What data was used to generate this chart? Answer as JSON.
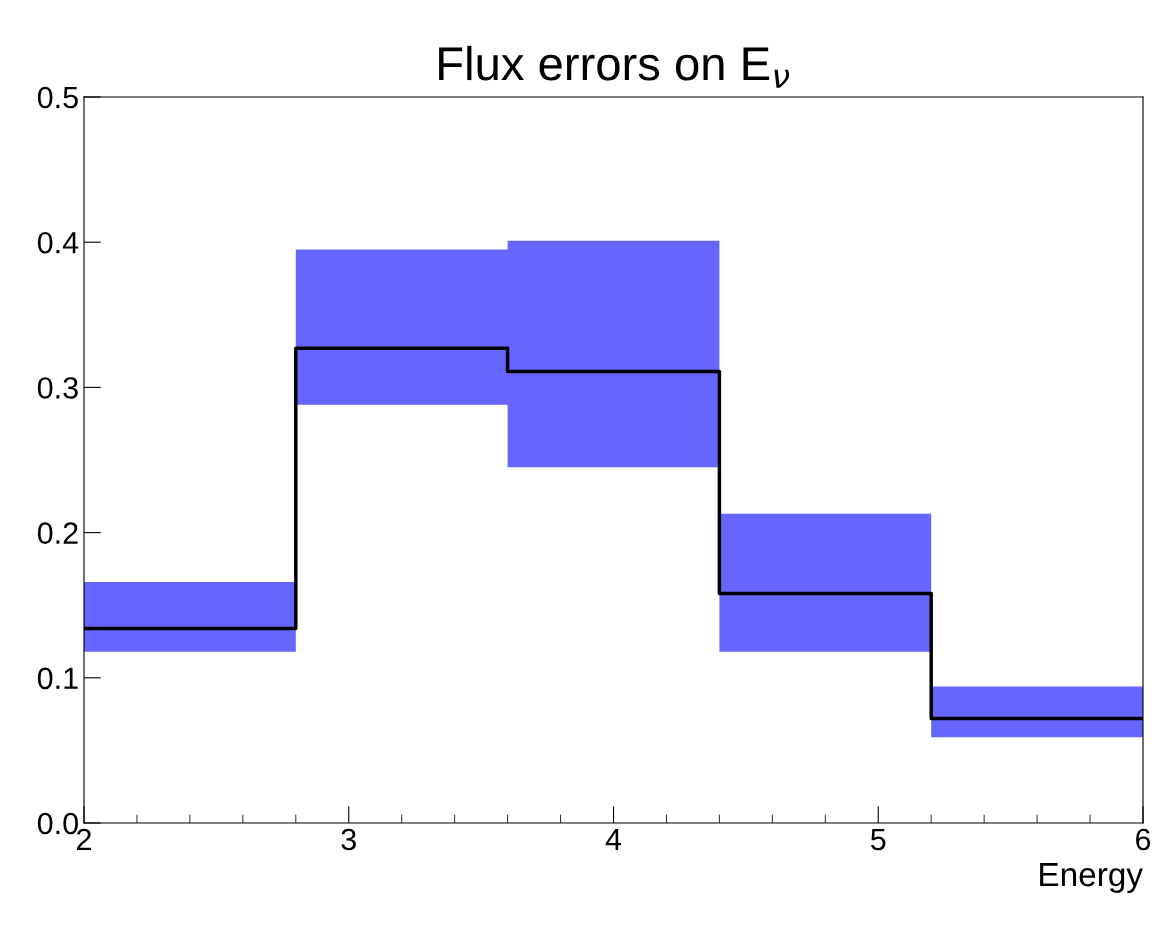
{
  "chart_data": {
    "type": "step",
    "title": "Flux errors on E$_{ν}$",
    "xlabel": "Energy",
    "series": [
      {
        "color": "#000000",
        "x": [
          2,
          2.8,
          3.6,
          4.4,
          5.2,
          6
        ],
        "values": [
          0.134,
          0.327,
          0.311,
          0.158,
          0.072,
          0.072
        ],
        "lower": [
          0.118,
          0.288,
          0.245,
          0.118,
          0.059,
          0.059
        ],
        "upper": [
          0.166,
          0.395,
          0.401,
          0.213,
          0.094,
          0.094
        ]
      }
    ],
    "xlim": [
      2,
      6
    ],
    "xticks": [
      2,
      3,
      4,
      5,
      6
    ],
    "ylim": [
      0,
      0.5
    ],
    "yticks": [
      {
        "value": 0,
        "label": "0.0"
      },
      {
        "value": 0.1,
        "label": "0.1"
      },
      {
        "value": 0.2,
        "label": "0.2"
      },
      {
        "value": 0.3,
        "label": "0.3"
      },
      {
        "value": 0.4,
        "label": "0.4"
      },
      {
        "value": 0.5,
        "label": "0.5"
      }
    ],
    "grid": false,
    "legend": false
  }
}
